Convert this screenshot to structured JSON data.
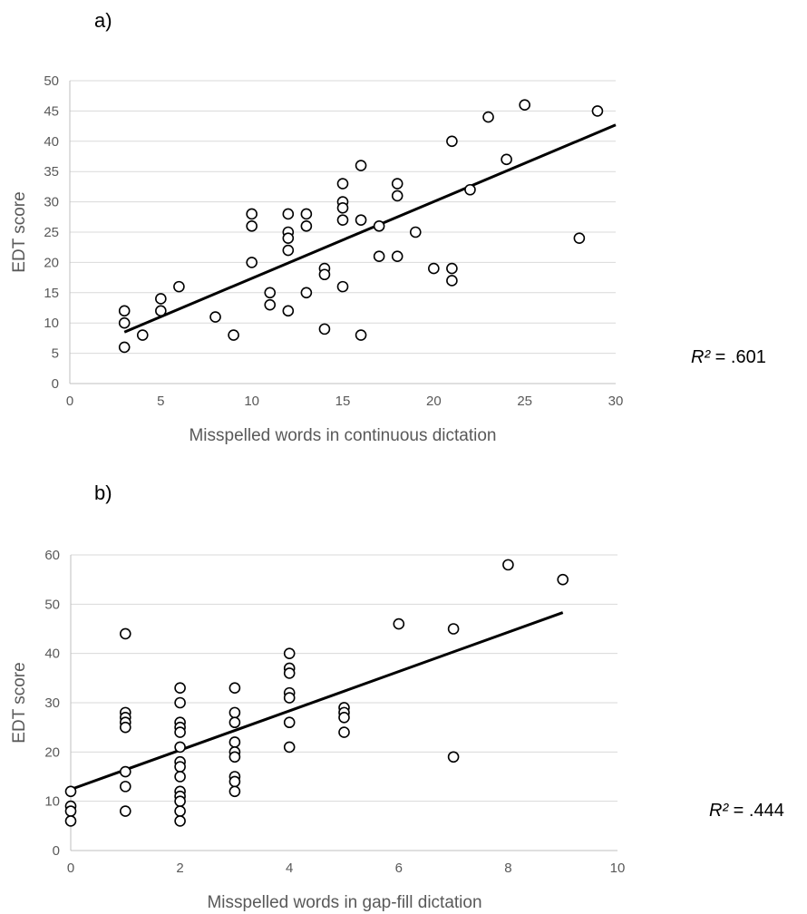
{
  "chart_data": [
    {
      "type": "scatter",
      "panel_label": "a)",
      "xlabel": "Misspelled words in continuous dictation",
      "ylabel": "EDT score",
      "xlim": [
        0,
        30
      ],
      "ylim": [
        0,
        50
      ],
      "x_ticks": [
        "0",
        "5",
        "10",
        "15",
        "20",
        "25",
        "30"
      ],
      "y_ticks": [
        "0",
        "5",
        "10",
        "15",
        "20",
        "25",
        "30",
        "35",
        "40",
        "45",
        "50"
      ],
      "grid": true,
      "r2_label": {
        "symbol": "R²",
        "value": " = .601"
      },
      "trendline": {
        "x": [
          3,
          30
        ],
        "y": [
          8.5,
          42.7
        ]
      },
      "points": [
        [
          3,
          12
        ],
        [
          3,
          10
        ],
        [
          3,
          6
        ],
        [
          4,
          8
        ],
        [
          5,
          14
        ],
        [
          5,
          12
        ],
        [
          6,
          16
        ],
        [
          8,
          11
        ],
        [
          9,
          8
        ],
        [
          10,
          28
        ],
        [
          10,
          26
        ],
        [
          10,
          20
        ],
        [
          11,
          15
        ],
        [
          11,
          13
        ],
        [
          12,
          28
        ],
        [
          12,
          25
        ],
        [
          12,
          24
        ],
        [
          12,
          22
        ],
        [
          12,
          12
        ],
        [
          13,
          28
        ],
        [
          13,
          26
        ],
        [
          13,
          15
        ],
        [
          14,
          19
        ],
        [
          14,
          18
        ],
        [
          14,
          9
        ],
        [
          15,
          33
        ],
        [
          15,
          30
        ],
        [
          15,
          29
        ],
        [
          15,
          27
        ],
        [
          15,
          16
        ],
        [
          16,
          36
        ],
        [
          16,
          27
        ],
        [
          16,
          8
        ],
        [
          17,
          26
        ],
        [
          17,
          21
        ],
        [
          18,
          33
        ],
        [
          18,
          31
        ],
        [
          18,
          21
        ],
        [
          19,
          25
        ],
        [
          20,
          19
        ],
        [
          21,
          40
        ],
        [
          21,
          19
        ],
        [
          21,
          17
        ],
        [
          22,
          32
        ],
        [
          23,
          44
        ],
        [
          24,
          37
        ],
        [
          25,
          46
        ],
        [
          28,
          24
        ],
        [
          29,
          45
        ]
      ]
    },
    {
      "type": "scatter",
      "panel_label": "b)",
      "xlabel": "Misspelled words in gap-fill dictation",
      "ylabel": "EDT score",
      "xlim": [
        0,
        10
      ],
      "ylim": [
        0,
        60
      ],
      "x_ticks": [
        "0",
        "2",
        "4",
        "6",
        "8",
        "10"
      ],
      "y_ticks": [
        "0",
        "10",
        "20",
        "30",
        "40",
        "50",
        "60"
      ],
      "grid": true,
      "r2_label": {
        "symbol": "R²",
        "value": " = .444"
      },
      "trendline": {
        "x": [
          0,
          9
        ],
        "y": [
          12.4,
          48.3
        ]
      },
      "points": [
        [
          0,
          12
        ],
        [
          0,
          9
        ],
        [
          0,
          8
        ],
        [
          0,
          6
        ],
        [
          1,
          44
        ],
        [
          1,
          28
        ],
        [
          1,
          27
        ],
        [
          1,
          26
        ],
        [
          1,
          25
        ],
        [
          1,
          16
        ],
        [
          1,
          13
        ],
        [
          1,
          8
        ],
        [
          2,
          33
        ],
        [
          2,
          30
        ],
        [
          2,
          26
        ],
        [
          2,
          25
        ],
        [
          2,
          24
        ],
        [
          2,
          21
        ],
        [
          2,
          18
        ],
        [
          2,
          17
        ],
        [
          2,
          15
        ],
        [
          2,
          12
        ],
        [
          2,
          11
        ],
        [
          2,
          10
        ],
        [
          2,
          8
        ],
        [
          2,
          6
        ],
        [
          3,
          33
        ],
        [
          3,
          28
        ],
        [
          3,
          26
        ],
        [
          3,
          22
        ],
        [
          3,
          20
        ],
        [
          3,
          19
        ],
        [
          3,
          15
        ],
        [
          3,
          14
        ],
        [
          3,
          12
        ],
        [
          4,
          40
        ],
        [
          4,
          37
        ],
        [
          4,
          36
        ],
        [
          4,
          32
        ],
        [
          4,
          31
        ],
        [
          4,
          26
        ],
        [
          4,
          21
        ],
        [
          5,
          29
        ],
        [
          5,
          28
        ],
        [
          5,
          27
        ],
        [
          5,
          24
        ],
        [
          6,
          46
        ],
        [
          7,
          45
        ],
        [
          7,
          19
        ],
        [
          8,
          58
        ],
        [
          9,
          55
        ]
      ]
    }
  ]
}
